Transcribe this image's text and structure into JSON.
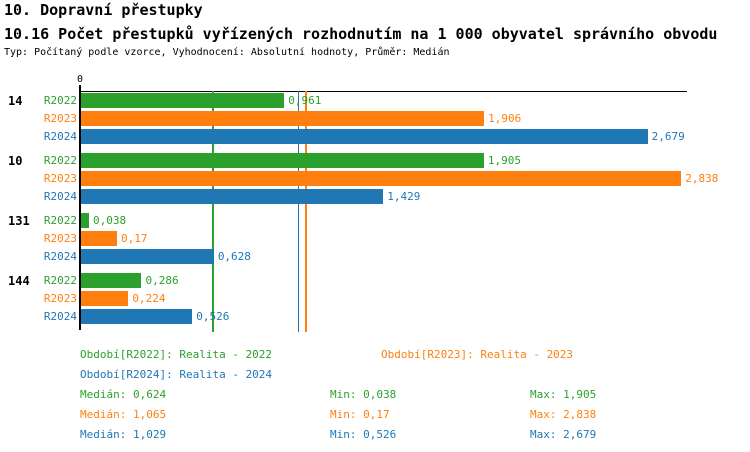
{
  "header": {
    "title": "10. Dopravní přestupky",
    "subtitle": "10.16 Počet přestupků vyřízených rozhodnutím na 1 000 obyvatel správního obvodu",
    "meta": "Typ: Počítaný podle vzorce, Vyhodnocení: Absolutní hodnoty, Průměr: Medián"
  },
  "colors": {
    "R2022": "#2ca02c",
    "R2023": "#ff7f0e",
    "R2024": "#1f77b4",
    "axis": "#000000"
  },
  "chart_data": {
    "type": "bar",
    "orientation": "horizontal",
    "title": "10.16 Počet přestupků vyřízených rozhodnutím na 1 000 obyvatel správního obvodu",
    "x_axis": {
      "zero_label": "0",
      "min": 0,
      "max": 2.87,
      "gridlines": false
    },
    "categories": [
      "14",
      "10",
      "131",
      "144"
    ],
    "series": [
      {
        "name": "R2022",
        "color": "#2ca02c",
        "values": [
          0.961,
          1.905,
          0.038,
          0.286
        ],
        "value_labels": [
          "0,961",
          "1,905",
          "0,038",
          "0,286"
        ]
      },
      {
        "name": "R2023",
        "color": "#ff7f0e",
        "values": [
          1.906,
          2.838,
          0.17,
          0.224
        ],
        "value_labels": [
          "1,906",
          "2,838",
          "0,17",
          "0,224"
        ]
      },
      {
        "name": "R2024",
        "color": "#1f77b4",
        "values": [
          2.679,
          1.429,
          0.628,
          0.526
        ],
        "value_labels": [
          "2,679",
          "1,429",
          "0,628",
          "0,526"
        ]
      }
    ],
    "reference_lines": [
      {
        "name": "median-R2022",
        "value": 0.624,
        "color": "#2ca02c"
      },
      {
        "name": "median-R2024",
        "value": 1.029,
        "color": "#1f77b4"
      },
      {
        "name": "median-R2023",
        "value": 1.065,
        "color": "#ff7f0e"
      }
    ],
    "legend_position": "bottom"
  },
  "legend": {
    "periods": [
      {
        "key": "R2022",
        "label": "Období[R2022]: Realita - 2022"
      },
      {
        "key": "R2023",
        "label": "Období[R2023]: Realita - 2023"
      },
      {
        "key": "R2024",
        "label": "Období[R2024]: Realita - 2024"
      }
    ],
    "stats": [
      {
        "key": "R2022",
        "median": "Medián: 0,624",
        "min": "Min: 0,038",
        "max": "Max: 1,905"
      },
      {
        "key": "R2023",
        "median": "Medián: 1,065",
        "min": "Min: 0,17",
        "max": "Max: 2,838"
      },
      {
        "key": "R2024",
        "median": "Medián: 1,029",
        "min": "Min: 0,526",
        "max": "Max: 2,679"
      }
    ]
  }
}
